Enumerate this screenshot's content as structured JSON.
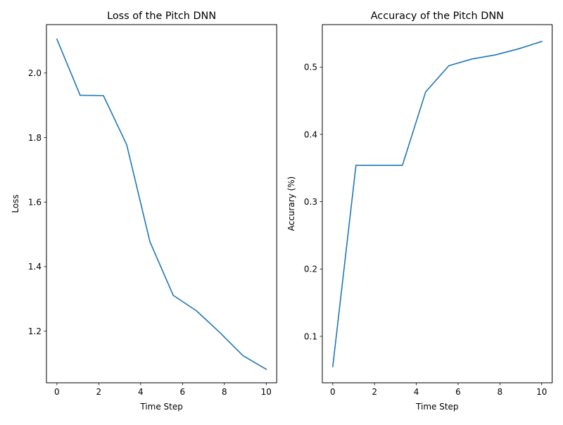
{
  "chart_data": [
    {
      "type": "line",
      "title": "Loss of the Pitch DNN",
      "xlabel": "Time Step",
      "ylabel": "Loss",
      "xlim": [
        -0.5,
        10.5
      ],
      "ylim": [
        1.04,
        2.15
      ],
      "xticks": [
        0,
        2,
        4,
        6,
        8,
        10
      ],
      "xtick_labels": [
        "0",
        "2",
        "4",
        "6",
        "8",
        "10"
      ],
      "yticks": [
        1.2,
        1.4,
        1.6,
        1.8,
        2.0
      ],
      "ytick_labels": [
        "1.2",
        "1.4",
        "1.6",
        "1.8",
        "2.0"
      ],
      "grid": false,
      "series": [
        {
          "color": "#1f77b4",
          "x": [
            0,
            1.111,
            2.222,
            3.333,
            4.444,
            5.556,
            6.667,
            7.778,
            8.889,
            10
          ],
          "y": [
            2.105,
            1.931,
            1.93,
            1.778,
            1.477,
            1.311,
            1.263,
            1.196,
            1.124,
            1.082
          ]
        }
      ]
    },
    {
      "type": "line",
      "title": "Accuracy of the Pitch DNN",
      "xlabel": "Time Step",
      "ylabel": "Accurary (%)",
      "xlim": [
        -0.5,
        10.5
      ],
      "ylim": [
        0.031,
        0.563
      ],
      "xticks": [
        0,
        2,
        4,
        6,
        8,
        10
      ],
      "xtick_labels": [
        "0",
        "2",
        "4",
        "6",
        "8",
        "10"
      ],
      "yticks": [
        0.1,
        0.2,
        0.3,
        0.4,
        0.5
      ],
      "ytick_labels": [
        "0.1",
        "0.2",
        "0.3",
        "0.4",
        "0.5"
      ],
      "grid": false,
      "series": [
        {
          "color": "#1f77b4",
          "x": [
            0,
            1.111,
            2.222,
            3.333,
            4.444,
            5.556,
            6.667,
            7.778,
            8.889,
            10
          ],
          "y": [
            0.055,
            0.354,
            0.354,
            0.354,
            0.463,
            0.502,
            0.512,
            0.518,
            0.527,
            0.538
          ]
        }
      ]
    }
  ]
}
